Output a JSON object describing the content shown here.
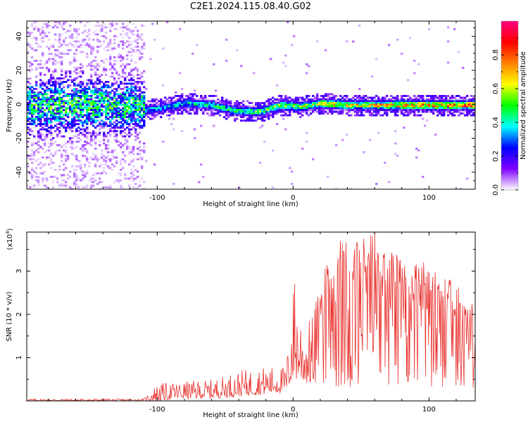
{
  "title": "C2E1.2024.115.08.40.G02",
  "chart_data": [
    {
      "type": "heatmap",
      "xlabel": "Height of straight line (km)",
      "ylabel": "Frequency (Hz)",
      "xlim": [
        -196,
        134
      ],
      "ylim": [
        -50,
        49
      ],
      "xticks": [
        -100,
        0,
        100
      ],
      "xtick_labels": [
        "-100",
        "0",
        "100"
      ],
      "yticks": [
        -40,
        -20,
        0,
        20,
        40
      ],
      "ytick_labels": [
        "-40",
        "-20",
        "0",
        "20",
        "40"
      ],
      "colorbar": {
        "label": "Normalized spectral amplitude",
        "ticks": [
          0.0,
          0.2,
          0.4,
          0.6,
          0.8
        ],
        "tick_labels": [
          "0.0",
          "0.2",
          "0.4",
          "0.6",
          "0.8"
        ],
        "range": [
          0,
          1
        ],
        "colormap": [
          "#ffffff",
          "#8000ff",
          "#0000ff",
          "#00ffff",
          "#00ff00",
          "#ffff00",
          "#ff8000",
          "#ff0000",
          "#ff0080"
        ]
      },
      "ridge_freq_hz": [
        {
          "x": -110,
          "y": -3
        },
        {
          "x": -100,
          "y": -2
        },
        {
          "x": -80,
          "y": 1
        },
        {
          "x": -60,
          "y": 0
        },
        {
          "x": -45,
          "y": -3
        },
        {
          "x": -25,
          "y": -4
        },
        {
          "x": -10,
          "y": 0
        },
        {
          "x": 5,
          "y": -1
        },
        {
          "x": 20,
          "y": 1
        },
        {
          "x": 40,
          "y": 0
        },
        {
          "x": 70,
          "y": 0
        },
        {
          "x": 100,
          "y": 0
        },
        {
          "x": 134,
          "y": 0
        }
      ]
    },
    {
      "type": "line",
      "xlabel": "Height of straight line (km)",
      "ylabel": "SNR (10 * v/v)",
      "yscale_label": "(x10",
      "yscale_exp": "4",
      "yscale_close": ")",
      "xlim": [
        -196,
        134
      ],
      "ylim": [
        0,
        3.9
      ],
      "xticks": [
        -100,
        0,
        100
      ],
      "xtick_labels": [
        "-100",
        "0",
        "100"
      ],
      "yticks": [
        1,
        2,
        3
      ],
      "ytick_labels": [
        "1",
        "2",
        "3"
      ],
      "color": "#e8302c",
      "envelope": [
        {
          "x": -196,
          "lo": 0.0,
          "hi": 0.05
        },
        {
          "x": -110,
          "lo": 0.0,
          "hi": 0.05
        },
        {
          "x": -100,
          "lo": 0.0,
          "hi": 0.4
        },
        {
          "x": -80,
          "lo": 0.05,
          "hi": 0.45
        },
        {
          "x": -60,
          "lo": 0.05,
          "hi": 0.5
        },
        {
          "x": -40,
          "lo": 0.1,
          "hi": 0.7
        },
        {
          "x": -20,
          "lo": 0.15,
          "hi": 0.8
        },
        {
          "x": -5,
          "lo": 0.2,
          "hi": 0.8
        },
        {
          "x": 0,
          "lo": 0.5,
          "hi": 2.7
        },
        {
          "x": 10,
          "lo": 0.4,
          "hi": 1.7
        },
        {
          "x": 25,
          "lo": 0.4,
          "hi": 3.2
        },
        {
          "x": 35,
          "lo": 0.3,
          "hi": 3.7
        },
        {
          "x": 60,
          "lo": 0.3,
          "hi": 3.95
        },
        {
          "x": 80,
          "lo": 0.3,
          "hi": 3.3
        },
        {
          "x": 100,
          "lo": 0.3,
          "hi": 3.2
        },
        {
          "x": 120,
          "lo": 0.3,
          "hi": 2.7
        },
        {
          "x": 134,
          "lo": 0.3,
          "hi": 2.2
        }
      ],
      "peaks": [
        {
          "x": 1,
          "y": 2.7
        },
        {
          "x": 35,
          "y": 3.7
        },
        {
          "x": 60,
          "y": 3.9
        },
        {
          "x": 96,
          "y": 3.2
        }
      ]
    }
  ]
}
